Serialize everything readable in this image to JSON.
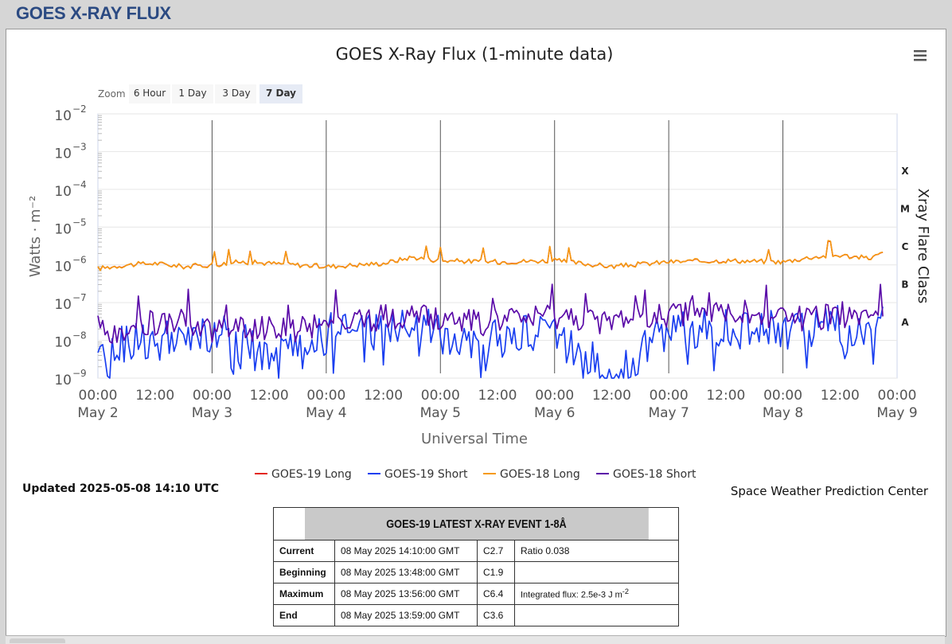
{
  "page_title": "GOES X-RAY FLUX",
  "chart_data": {
    "type": "line",
    "title": "GOES X-Ray Flux (1-minute data)",
    "xlabel": "Universal Time",
    "ylabel": "Watts · m⁻²",
    "y2label": "Xray Flare Class",
    "yscale": "log",
    "ylim": [
      1e-09,
      0.01
    ],
    "xlim": [
      "2025-05-02 00:00",
      "2025-05-09 00:00"
    ],
    "grid": true,
    "legend": "bottom-center",
    "y_ticks": [
      {
        "base": "10",
        "exp": "−2"
      },
      {
        "base": "10",
        "exp": "−3"
      },
      {
        "base": "10",
        "exp": "−4"
      },
      {
        "base": "10",
        "exp": "−5"
      },
      {
        "base": "10",
        "exp": "−6"
      },
      {
        "base": "10",
        "exp": "−7"
      },
      {
        "base": "10",
        "exp": "−8"
      },
      {
        "base": "10",
        "exp": "−9"
      }
    ],
    "x_ticks": [
      {
        "time": "00:00",
        "date": "May 2"
      },
      {
        "time": "12:00",
        "date": ""
      },
      {
        "time": "00:00",
        "date": "May 3"
      },
      {
        "time": "12:00",
        "date": ""
      },
      {
        "time": "00:00",
        "date": "May 4"
      },
      {
        "time": "12:00",
        "date": ""
      },
      {
        "time": "00:00",
        "date": "May 5"
      },
      {
        "time": "12:00",
        "date": ""
      },
      {
        "time": "00:00",
        "date": "May 6"
      },
      {
        "time": "12:00",
        "date": ""
      },
      {
        "time": "00:00",
        "date": "May 7"
      },
      {
        "time": "12:00",
        "date": ""
      },
      {
        "time": "00:00",
        "date": "May 8"
      },
      {
        "time": "12:00",
        "date": ""
      },
      {
        "time": "00:00",
        "date": "May 9"
      }
    ],
    "flare_classes": [
      "X",
      "M",
      "C",
      "B",
      "A"
    ],
    "series": [
      {
        "name": "GOES-19 Long",
        "color": "#e3261c",
        "x_hours": [
          0,
          6,
          12,
          18,
          24,
          30,
          36,
          42,
          48,
          60,
          66,
          72,
          84,
          96,
          108,
          120,
          132,
          144,
          150,
          156,
          162,
          165
        ],
        "values": [
          8e-07,
          1e-06,
          1.1e-06,
          9e-07,
          1e-06,
          1.2e-06,
          1.1e-06,
          1e-06,
          9e-07,
          1.1e-06,
          1.6e-06,
          1.3e-06,
          1.2e-06,
          1.3e-06,
          9e-07,
          1.2e-06,
          1.3e-06,
          1.2e-06,
          1.6e-06,
          1.8e-06,
          1.5e-06,
          2e-06
        ]
      },
      {
        "name": "GOES-19 Short",
        "color": "#1a3ff0",
        "x_hours": [
          0,
          6,
          12,
          18,
          24,
          30,
          36,
          42,
          48,
          60,
          66,
          72,
          84,
          96,
          108,
          120,
          132,
          144,
          150,
          156,
          162,
          165
        ],
        "values": [
          2e-09,
          1e-08,
          1e-08,
          8e-09,
          1.5e-08,
          1e-08,
          3e-09,
          5e-09,
          1.5e-08,
          2e-08,
          3e-08,
          1.5e-08,
          1e-08,
          2e-08,
          1e-09,
          2e-08,
          2e-08,
          2e-08,
          2e-08,
          3e-08,
          1.2e-08,
          3e-08
        ]
      },
      {
        "name": "GOES-18 Long",
        "color": "#f59a12",
        "x_hours": [
          0,
          6,
          12,
          18,
          24,
          30,
          36,
          42,
          48,
          60,
          66,
          72,
          84,
          96,
          108,
          120,
          132,
          144,
          150,
          156,
          162,
          165
        ],
        "values": [
          8e-07,
          1e-06,
          1.1e-06,
          9e-07,
          1e-06,
          1.2e-06,
          1.1e-06,
          1e-06,
          9e-07,
          1.1e-06,
          1.6e-06,
          1.3e-06,
          1.2e-06,
          1.3e-06,
          9e-07,
          1.2e-06,
          1.3e-06,
          1.2e-06,
          1.6e-06,
          1.8e-06,
          1.5e-06,
          2e-06
        ]
      },
      {
        "name": "GOES-18 Short",
        "color": "#5a0aa8",
        "x_hours": [
          0,
          6,
          12,
          18,
          24,
          30,
          36,
          42,
          48,
          60,
          66,
          72,
          84,
          96,
          108,
          120,
          132,
          144,
          150,
          156,
          162,
          165
        ],
        "values": [
          1.5e-08,
          2e-08,
          3e-08,
          3e-08,
          2e-08,
          2e-08,
          2e-08,
          2e-08,
          3e-08,
          4e-08,
          5e-08,
          3e-08,
          3e-08,
          4e-08,
          3e-08,
          5e-08,
          5e-08,
          4e-08,
          4e-08,
          5e-08,
          3e-08,
          5e-08
        ]
      }
    ]
  },
  "zoom": {
    "label": "Zoom",
    "buttons": [
      "6 Hour",
      "1 Day",
      "3 Day",
      "7 Day"
    ],
    "selected": "7 Day"
  },
  "updated": "Updated 2025-05-08 14:10 UTC",
  "credit": "Space Weather Prediction Center",
  "menu_icon": "hamburger-menu-icon",
  "event_table": {
    "title": "GOES-19 LATEST X-RAY EVENT 1-8Å",
    "rows": {
      "current": {
        "label": "Current",
        "time": "08 May 2025 14:10:00 GMT",
        "class": "C2.7",
        "extra": "Ratio 0.038"
      },
      "beginning": {
        "label": "Beginning",
        "time": "08 May 2025 13:48:00 GMT",
        "class": "C1.9",
        "extra": ""
      },
      "maximum": {
        "label": "Maximum",
        "time": "08 May 2025 13:56:00 GMT",
        "class": "C6.4",
        "extra": "Integrated flux: 2.5e-3 J m",
        "extra_sup": "-2"
      },
      "end": {
        "label": "End",
        "time": "08 May 2025 13:59:00 GMT",
        "class": "C3.6",
        "extra": ""
      }
    }
  }
}
